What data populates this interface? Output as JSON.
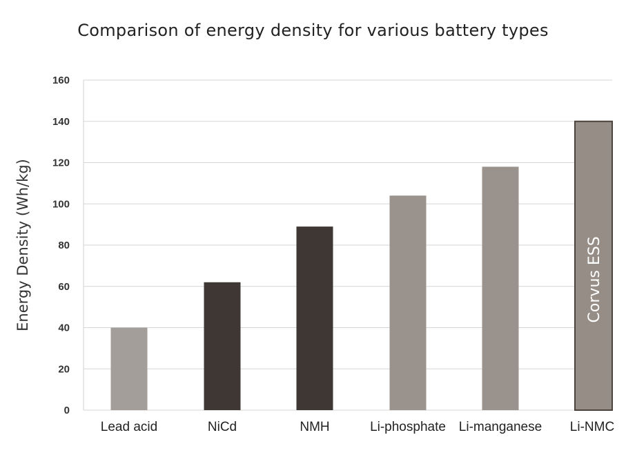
{
  "chart_data": {
    "type": "bar",
    "title": "Comparison of energy density for various battery types",
    "xlabel": "",
    "ylabel": "Energy Density (Wh/kg)",
    "categories": [
      "Lead acid",
      "NiCd",
      "NMH",
      "Li-phosphate",
      "Li-manganese",
      "Li-NMC"
    ],
    "values": [
      40,
      62,
      89,
      104,
      118,
      140
    ],
    "bar_colors": [
      "#a39e99",
      "#3f3733",
      "#3f3733",
      "#9a928d",
      "#9a928d",
      "#968d86"
    ],
    "ylim": [
      0,
      160
    ],
    "yticks": [
      0,
      20,
      40,
      60,
      80,
      100,
      120,
      140,
      160
    ],
    "grid": true,
    "annotation": {
      "category": "Li-NMC",
      "text": "Corvus ESS"
    }
  }
}
